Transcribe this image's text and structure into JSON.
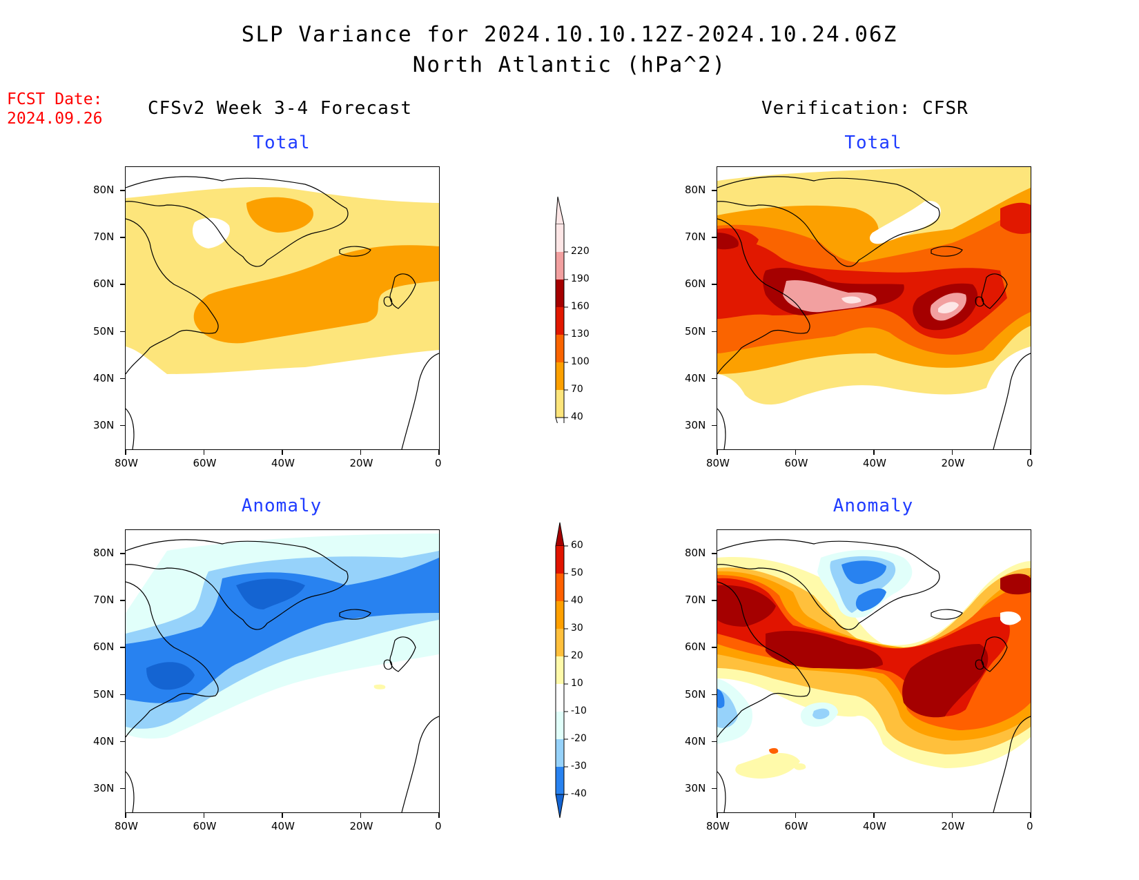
{
  "title": {
    "line1": "SLP Variance for 2024.10.10.12Z-2024.10.24.06Z",
    "line2": "North Atlantic (hPa^2)"
  },
  "fcst_date": {
    "label": "FCST Date:",
    "value": "2024.09.26"
  },
  "columns": {
    "left": "CFSv2 Week 3-4 Forecast",
    "right": "Verification: CFSR"
  },
  "panel_titles": {
    "total": "Total",
    "anomaly": "Anomaly"
  },
  "lat_ticks": [
    "80N",
    "70N",
    "60N",
    "50N",
    "40N",
    "30N"
  ],
  "lon_ticks": [
    "80W",
    "60W",
    "40W",
    "20W",
    "0"
  ],
  "colors": {
    "total_levels": [
      "#fde57b",
      "#fca000",
      "#fa6400",
      "#e11800",
      "#a50000",
      "#f2a0a0",
      "#fde6e6"
    ],
    "anomaly_levels": [
      "#1464d2",
      "#2882f0",
      "#96d2fa",
      "#e1fffa",
      "#ffffff",
      "#fffaaa",
      "#ffc03c",
      "#ffa000",
      "#ff6000",
      "#e11400",
      "#a50000"
    ],
    "title_blue": "#1f3cff",
    "fcst_red": "#ff0000"
  },
  "colorbar_total": {
    "labels": [
      "40",
      "70",
      "100",
      "130",
      "160",
      "190",
      "220"
    ]
  },
  "colorbar_anomaly": {
    "labels": [
      "-40",
      "-30",
      "-20",
      "-10",
      "10",
      "20",
      "30",
      "40",
      "50",
      "60"
    ]
  },
  "chart_data": [
    {
      "type": "heatmap",
      "title": "CFSv2 Week 3-4 Forecast - Total",
      "units": "hPa^2",
      "xlim": [
        "80W",
        "0"
      ],
      "ylim": [
        "25N",
        "85N"
      ],
      "levels": [
        40,
        70,
        100,
        130,
        160,
        190,
        220
      ]
    },
    {
      "type": "heatmap",
      "title": "Verification: CFSR - Total",
      "units": "hPa^2",
      "xlim": [
        "80W",
        "0"
      ],
      "ylim": [
        "25N",
        "85N"
      ],
      "levels": [
        40,
        70,
        100,
        130,
        160,
        190,
        220
      ]
    },
    {
      "type": "heatmap",
      "title": "CFSv2 Week 3-4 Forecast - Anomaly",
      "units": "hPa^2",
      "xlim": [
        "80W",
        "0"
      ],
      "ylim": [
        "25N",
        "85N"
      ],
      "levels": [
        -40,
        -30,
        -20,
        -10,
        10,
        20,
        30,
        40,
        50,
        60
      ]
    },
    {
      "type": "heatmap",
      "title": "Verification: CFSR - Anomaly",
      "units": "hPa^2",
      "xlim": [
        "80W",
        "0"
      ],
      "ylim": [
        "25N",
        "85N"
      ],
      "levels": [
        -40,
        -30,
        -20,
        -10,
        10,
        20,
        30,
        40,
        50,
        60
      ]
    }
  ]
}
